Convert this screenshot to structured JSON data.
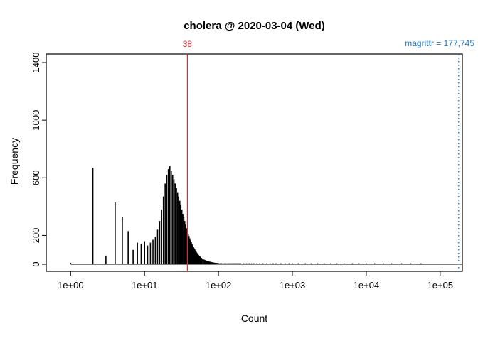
{
  "chart_data": {
    "type": "bar",
    "title": "cholera @ 2020-03-04 (Wed)",
    "xlabel": "Count",
    "ylabel": "Frequency",
    "x_scale": "log10",
    "xlim": [
      1,
      200000
    ],
    "ylim": [
      0,
      1450
    ],
    "grid": false,
    "bar_color": "#000000",
    "x_ticks": [
      {
        "v": 1,
        "label": "1e+00"
      },
      {
        "v": 10,
        "label": "1e+01"
      },
      {
        "v": 100,
        "label": "1e+02"
      },
      {
        "v": 1000,
        "label": "1e+03"
      },
      {
        "v": 10000,
        "label": "1e+04"
      },
      {
        "v": 100000,
        "label": "1e+05"
      }
    ],
    "y_ticks": [
      {
        "v": 0,
        "label": "0"
      },
      {
        "v": 200,
        "label": "200"
      },
      {
        "v": 600,
        "label": "600"
      },
      {
        "v": 1000,
        "label": "1000"
      },
      {
        "v": 1400,
        "label": "1400"
      }
    ],
    "annotations": {
      "red_line": {
        "x": 38,
        "label": "38",
        "color": "#dd2c2c"
      },
      "blue_line": {
        "x": 177745,
        "label": "magrittr = 177,745",
        "color": "#1e78c8",
        "style": "dotted"
      }
    },
    "x": [
      1,
      2,
      3,
      4,
      5,
      6,
      7,
      8,
      9,
      10,
      11,
      12,
      13,
      14,
      15,
      16,
      17,
      18,
      19,
      20,
      21,
      22,
      23,
      24,
      25,
      26,
      27,
      28,
      29,
      30,
      31,
      32,
      33,
      34,
      35,
      36,
      37,
      38,
      39,
      40,
      41,
      42,
      43,
      44,
      45,
      46,
      47,
      48,
      49,
      50,
      51,
      52,
      53,
      54,
      55,
      56,
      57,
      58,
      59,
      60,
      62,
      64,
      66,
      68,
      70,
      72,
      74,
      76,
      78,
      80,
      82,
      84,
      86,
      88,
      90,
      92,
      94,
      96,
      98,
      100,
      105,
      110,
      115,
      120,
      125,
      130,
      135,
      140,
      145,
      150,
      155,
      160,
      165,
      170,
      175,
      180,
      185,
      190,
      195,
      200,
      220,
      240,
      260,
      280,
      300,
      330,
      360,
      400,
      450,
      500,
      550,
      600,
      700,
      800,
      900,
      1000,
      1200,
      1500,
      1800,
      2200,
      2700,
      3300,
      4000,
      5000,
      6500,
      8000,
      10000,
      13000,
      17000,
      22000,
      30000,
      40000,
      55000
    ],
    "freq": [
      10,
      670,
      60,
      430,
      330,
      230,
      100,
      150,
      140,
      160,
      130,
      150,
      170,
      190,
      240,
      300,
      380,
      470,
      560,
      620,
      660,
      680,
      650,
      620,
      590,
      560,
      530,
      500,
      470,
      440,
      410,
      380,
      350,
      325,
      300,
      275,
      250,
      230,
      212,
      196,
      180,
      166,
      153,
      141,
      130,
      120,
      111,
      102,
      94,
      87,
      80,
      74,
      68,
      63,
      58,
      54,
      50,
      46,
      43,
      40,
      36,
      32,
      29,
      26,
      24,
      22,
      20,
      18,
      17,
      15,
      14,
      13,
      12,
      11,
      10,
      10,
      9,
      9,
      8,
      8,
      7,
      7,
      6,
      6,
      5,
      5,
      5,
      4,
      4,
      4,
      4,
      3,
      3,
      3,
      3,
      3,
      3,
      2,
      2,
      2,
      2,
      2,
      2,
      2,
      2,
      2,
      1,
      1,
      1,
      1,
      1,
      1,
      1,
      1,
      1,
      1,
      1,
      1,
      1,
      1,
      1,
      1,
      1,
      1,
      1,
      1,
      1,
      1,
      1,
      1,
      1,
      1,
      1
    ]
  }
}
